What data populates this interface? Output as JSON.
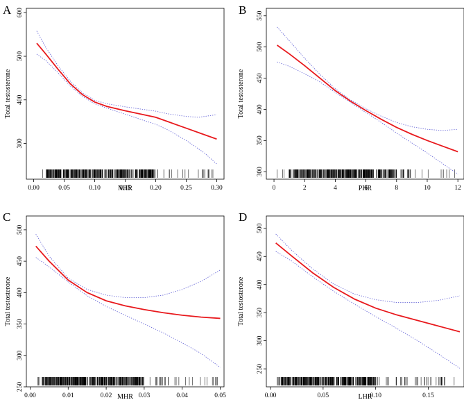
{
  "colors": {
    "fit": "#e8191d",
    "ci": "#6a6ad8",
    "rug": "#000000"
  },
  "chart_data": [
    {
      "panel": "A",
      "type": "line",
      "xlabel": "NHR",
      "ylabel": "Total testosterone",
      "xlim": [
        -0.012,
        0.312
      ],
      "ylim": [
        218,
        610
      ],
      "x_ticks": [
        0.0,
        0.05,
        0.1,
        0.15,
        0.2,
        0.25,
        0.3
      ],
      "x_tick_labels": [
        "0.00",
        "0.05",
        "0.10",
        "0.15",
        "0.20",
        "0.25",
        "0.30"
      ],
      "y_ticks": [
        300,
        400,
        500,
        600
      ],
      "y_tick_labels": [
        "300",
        "400",
        "500",
        "600"
      ],
      "series": [
        {
          "name": "fit",
          "x": [
            0.005,
            0.02,
            0.04,
            0.06,
            0.08,
            0.1,
            0.12,
            0.15,
            0.18,
            0.2,
            0.22,
            0.25,
            0.28,
            0.3
          ],
          "y": [
            530,
            505,
            470,
            437,
            412,
            395,
            385,
            375,
            366,
            360,
            350,
            335,
            320,
            310
          ]
        },
        {
          "name": "upper 95% CI",
          "x": [
            0.005,
            0.02,
            0.04,
            0.06,
            0.08,
            0.1,
            0.12,
            0.15,
            0.18,
            0.2,
            0.22,
            0.25,
            0.27,
            0.3
          ],
          "y": [
            558,
            520,
            478,
            443,
            416,
            399,
            391,
            384,
            378,
            374,
            368,
            362,
            360,
            366
          ]
        },
        {
          "name": "lower 95% CI",
          "x": [
            0.005,
            0.02,
            0.04,
            0.06,
            0.08,
            0.1,
            0.12,
            0.15,
            0.18,
            0.2,
            0.22,
            0.25,
            0.28,
            0.3
          ],
          "y": [
            505,
            490,
            462,
            432,
            408,
            391,
            381,
            367,
            353,
            344,
            331,
            307,
            278,
            253
          ]
        }
      ],
      "rug": {
        "x_min": 0.005,
        "x_max": 0.3,
        "count": 380,
        "dense_min": 0.02,
        "dense_max": 0.2
      }
    },
    {
      "panel": "B",
      "type": "line",
      "xlabel": "PHR",
      "ylabel": "Total testosterone",
      "xlim": [
        -0.5,
        12.4
      ],
      "ylim": [
        288,
        562
      ],
      "x_ticks": [
        0,
        2,
        4,
        6,
        8,
        10,
        12
      ],
      "x_tick_labels": [
        "0",
        "2",
        "4",
        "6",
        "8",
        "10",
        "12"
      ],
      "y_ticks": [
        300,
        350,
        400,
        450,
        500,
        550
      ],
      "y_tick_labels": [
        "300",
        "350",
        "400",
        "450",
        "500",
        "550"
      ],
      "series": [
        {
          "name": "fit",
          "x": [
            0.2,
            1,
            2,
            3,
            4,
            5,
            6,
            7,
            8,
            9,
            10,
            11,
            12
          ],
          "y": [
            503,
            489,
            470,
            450,
            430,
            413,
            398,
            384,
            371,
            360,
            350,
            341,
            332
          ]
        },
        {
          "name": "upper 95% CI",
          "x": [
            0.2,
            1,
            2,
            3,
            4,
            5,
            6,
            7,
            8,
            9,
            10,
            11,
            12
          ],
          "y": [
            532,
            510,
            482,
            456,
            433,
            415,
            401,
            389,
            379,
            372,
            368,
            366,
            368
          ]
        },
        {
          "name": "lower 95% CI",
          "x": [
            0.2,
            1,
            2,
            3,
            4,
            5,
            6,
            7,
            8,
            9,
            10,
            11,
            12
          ],
          "y": [
            476,
            469,
            457,
            444,
            427,
            411,
            395,
            379,
            362,
            346,
            330,
            313,
            296
          ]
        }
      ],
      "rug": {
        "x_min": 0.2,
        "x_max": 11.9,
        "count": 380,
        "dense_min": 1.0,
        "dense_max": 8.0
      }
    },
    {
      "panel": "C",
      "type": "line",
      "xlabel": "MHR",
      "ylabel": "Total testosterone",
      "xlim": [
        -0.001,
        0.051
      ],
      "ylim": [
        250,
        522
      ],
      "x_ticks": [
        0.0,
        0.01,
        0.02,
        0.03,
        0.04,
        0.05
      ],
      "x_tick_labels": [
        "0.00",
        "0.01",
        "0.02",
        "0.03",
        "0.04",
        "0.05"
      ],
      "y_ticks": [
        250,
        300,
        350,
        400,
        450,
        500
      ],
      "y_tick_labels": [
        "250",
        "300",
        "350",
        "400",
        "450",
        "500"
      ],
      "series": [
        {
          "name": "fit",
          "x": [
            0.0015,
            0.005,
            0.01,
            0.015,
            0.02,
            0.025,
            0.03,
            0.035,
            0.04,
            0.045,
            0.05
          ],
          "y": [
            474,
            450,
            420,
            400,
            387,
            379,
            373,
            368,
            364,
            361,
            359
          ]
        },
        {
          "name": "upper 95% CI",
          "x": [
            0.0015,
            0.005,
            0.01,
            0.015,
            0.02,
            0.025,
            0.03,
            0.035,
            0.04,
            0.045,
            0.05
          ],
          "y": [
            493,
            458,
            423,
            405,
            396,
            392,
            392,
            396,
            405,
            418,
            436
          ]
        },
        {
          "name": "lower 95% CI",
          "x": [
            0.0015,
            0.005,
            0.01,
            0.015,
            0.02,
            0.025,
            0.03,
            0.035,
            0.04,
            0.045,
            0.05
          ],
          "y": [
            456,
            441,
            417,
            395,
            378,
            364,
            350,
            336,
            320,
            303,
            281
          ]
        }
      ],
      "rug": {
        "x_min": 0.0015,
        "x_max": 0.05,
        "count": 380,
        "dense_min": 0.003,
        "dense_max": 0.03
      }
    },
    {
      "panel": "D",
      "type": "line",
      "xlabel": "LHR",
      "ylabel": "Total testosterone",
      "xlim": [
        -0.004,
        0.184
      ],
      "ylim": [
        218,
        522
      ],
      "x_ticks": [
        0.0,
        0.05,
        0.1,
        0.15
      ],
      "x_tick_labels": [
        "0.00",
        "0.05",
        "0.10",
        "0.15"
      ],
      "y_ticks": [
        250,
        300,
        350,
        400,
        450,
        500
      ],
      "y_tick_labels": [
        "250",
        "300",
        "350",
        "400",
        "450",
        "500"
      ],
      "series": [
        {
          "name": "fit",
          "x": [
            0.005,
            0.02,
            0.04,
            0.06,
            0.08,
            0.1,
            0.12,
            0.14,
            0.16,
            0.18
          ],
          "y": [
            474,
            451,
            421,
            395,
            374,
            358,
            346,
            336,
            326,
            316
          ]
        },
        {
          "name": "upper 95% CI",
          "x": [
            0.005,
            0.02,
            0.04,
            0.06,
            0.08,
            0.1,
            0.12,
            0.14,
            0.16,
            0.18
          ],
          "y": [
            490,
            461,
            428,
            401,
            383,
            373,
            368,
            368,
            372,
            380
          ]
        },
        {
          "name": "lower 95% CI",
          "x": [
            0.005,
            0.02,
            0.04,
            0.06,
            0.08,
            0.1,
            0.12,
            0.14,
            0.16,
            0.18
          ],
          "y": [
            459,
            442,
            414,
            388,
            365,
            343,
            322,
            300,
            276,
            251
          ]
        }
      ],
      "rug": {
        "x_min": 0.005,
        "x_max": 0.178,
        "count": 380,
        "dense_min": 0.01,
        "dense_max": 0.1
      }
    }
  ]
}
